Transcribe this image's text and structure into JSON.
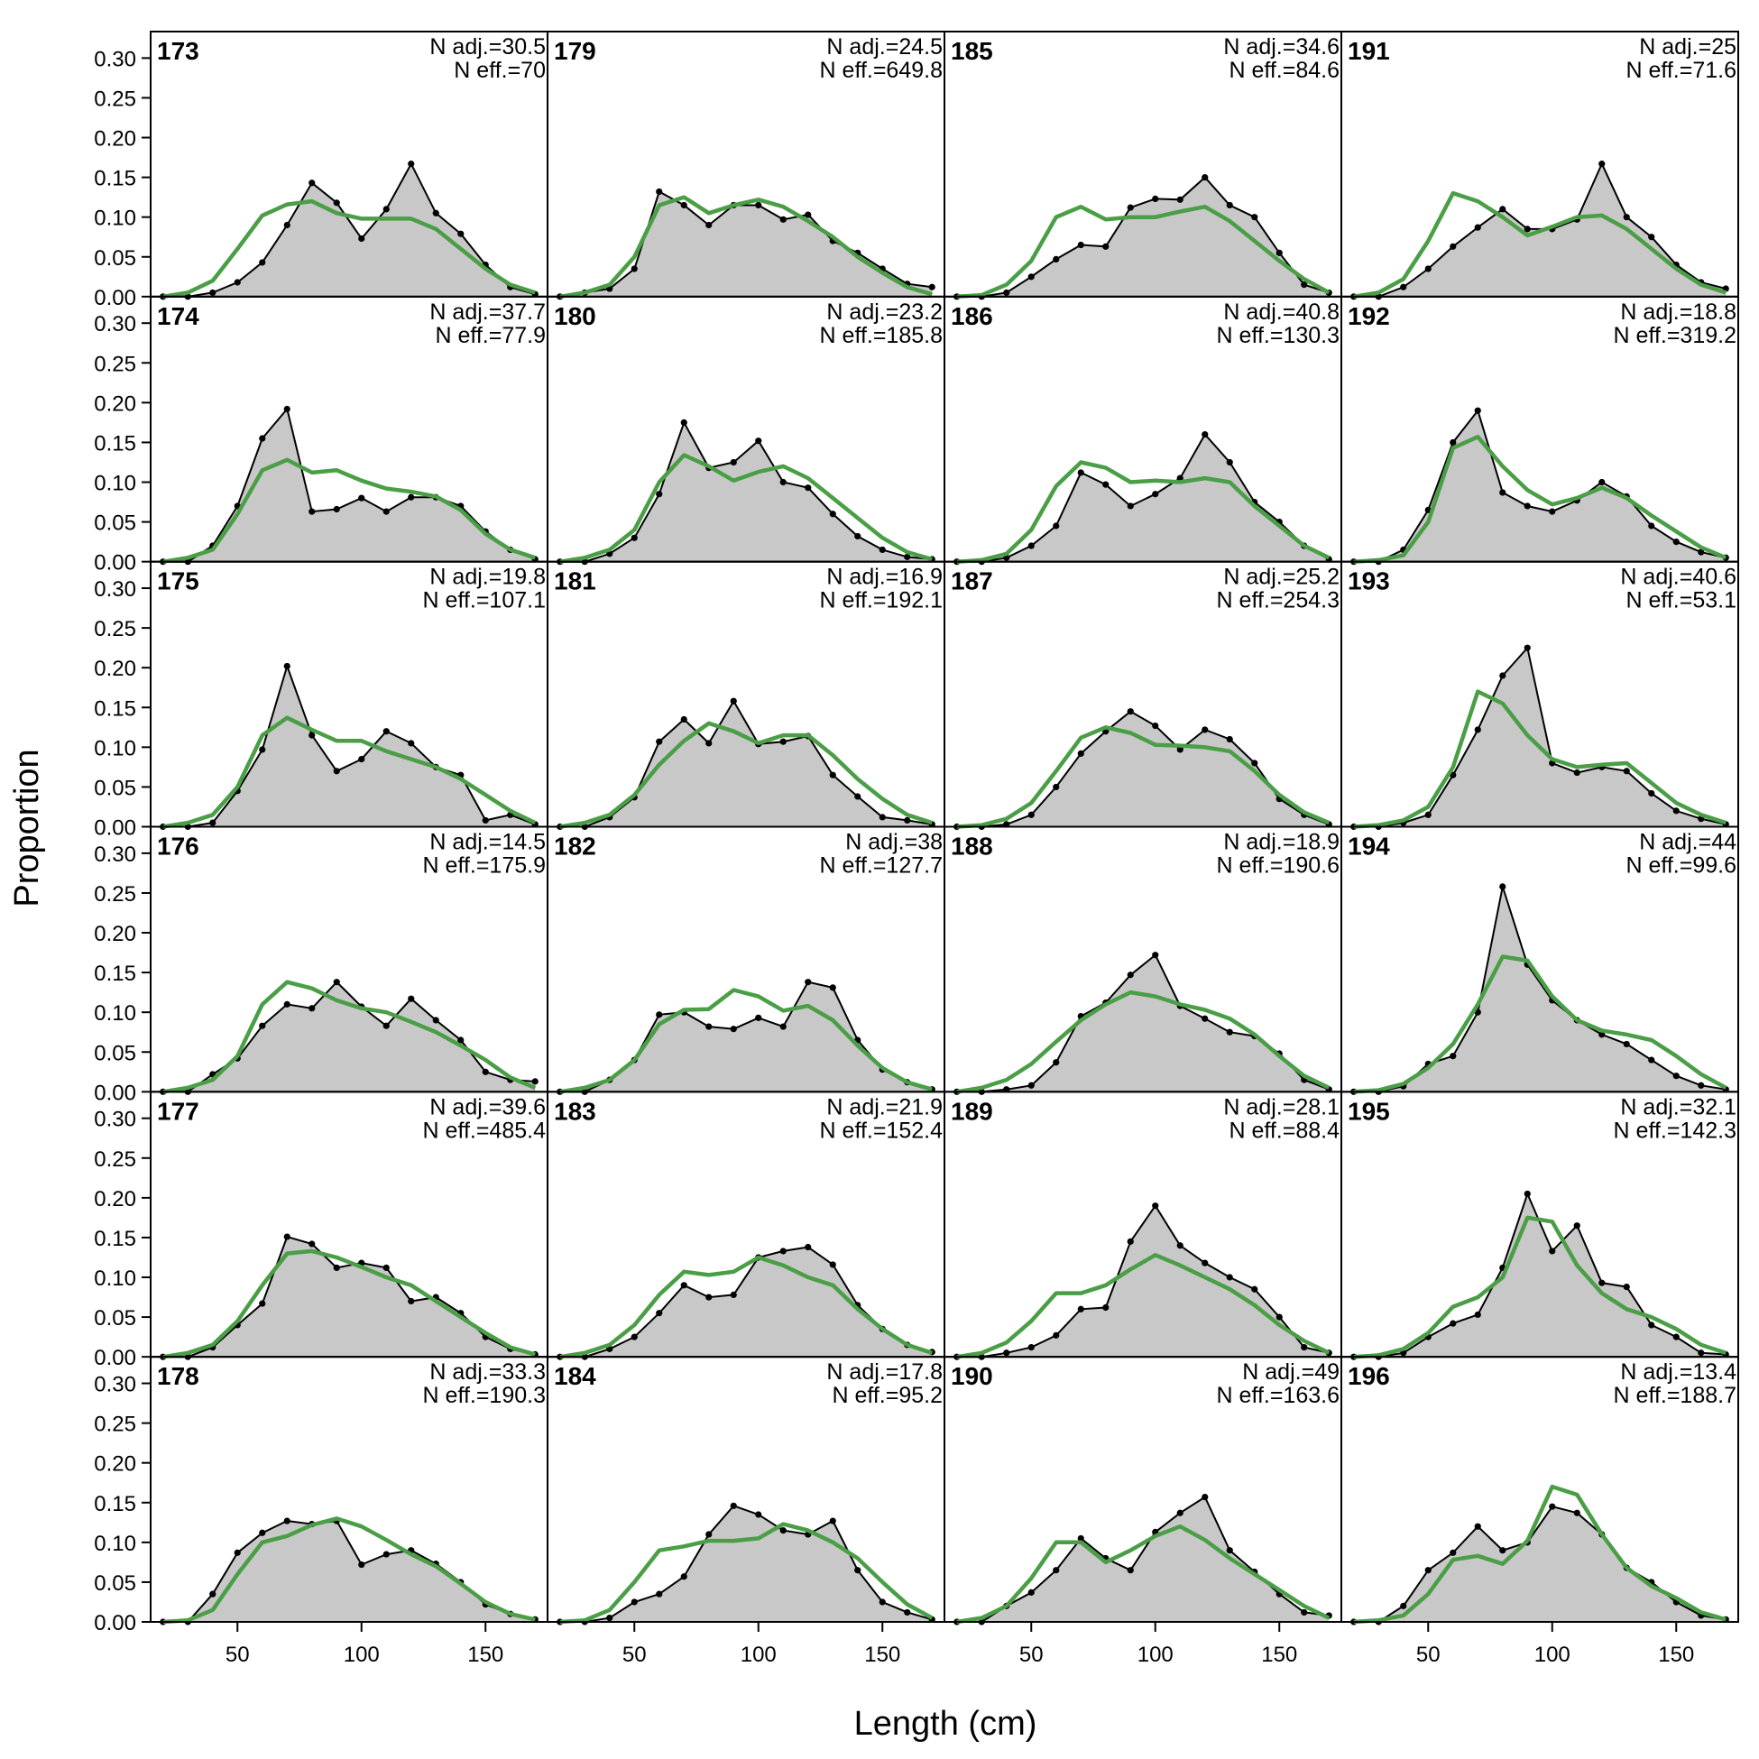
{
  "chart_data": {
    "type": "area",
    "xlabel": "Length (cm)",
    "ylabel": "Proportion",
    "xlim": [
      15,
      175
    ],
    "ylim": [
      0,
      0.33
    ],
    "x_ticks": [
      "50",
      "100",
      "150"
    ],
    "x_tick_values": [
      50,
      100,
      150
    ],
    "y_ticks": [
      "0.00",
      "0.05",
      "0.10",
      "0.15",
      "0.20",
      "0.25",
      "0.30"
    ],
    "y_tick_values": [
      0,
      0.05,
      0.1,
      0.15,
      0.2,
      0.25,
      0.3
    ],
    "x": [
      20,
      30,
      40,
      50,
      60,
      70,
      80,
      90,
      100,
      110,
      120,
      130,
      140,
      150,
      160,
      170
    ],
    "layout": {
      "columns": 4,
      "rows": 6,
      "order": "column-major"
    },
    "colors": {
      "observed_fill": "#c8c8c8",
      "observed_line": "#000000",
      "expected_line": "#4a9e46",
      "zero_line": "#b0b0b0"
    },
    "n_adj_prefix": "N adj.=",
    "n_eff_prefix": "N eff.=",
    "panels": [
      {
        "id": "173",
        "n_adj": "30.5",
        "n_eff": "70",
        "observed": [
          0,
          0,
          0.005,
          0.018,
          0.043,
          0.09,
          0.143,
          0.118,
          0.073,
          0.11,
          0.167,
          0.105,
          0.079,
          0.04,
          0.012,
          0.003
        ],
        "expected": [
          0,
          0.005,
          0.02,
          0.06,
          0.102,
          0.116,
          0.12,
          0.105,
          0.098,
          0.098,
          0.098,
          0.085,
          0.06,
          0.035,
          0.015,
          0.005
        ]
      },
      {
        "id": "174",
        "n_adj": "37.7",
        "n_eff": "77.9",
        "observed": [
          0,
          0,
          0.02,
          0.07,
          0.155,
          0.192,
          0.063,
          0.066,
          0.08,
          0.063,
          0.081,
          0.081,
          0.07,
          0.038,
          0.015,
          0.003
        ],
        "expected": [
          0,
          0.005,
          0.015,
          0.06,
          0.115,
          0.128,
          0.112,
          0.115,
          0.102,
          0.092,
          0.088,
          0.082,
          0.065,
          0.035,
          0.015,
          0.005
        ]
      },
      {
        "id": "175",
        "n_adj": "19.8",
        "n_eff": "107.1",
        "observed": [
          0,
          0,
          0.005,
          0.045,
          0.097,
          0.202,
          0.115,
          0.07,
          0.085,
          0.12,
          0.105,
          0.075,
          0.065,
          0.008,
          0.015,
          0.003
        ],
        "expected": [
          0,
          0.005,
          0.015,
          0.05,
          0.115,
          0.137,
          0.122,
          0.108,
          0.108,
          0.095,
          0.085,
          0.075,
          0.06,
          0.04,
          0.02,
          0.005
        ]
      },
      {
        "id": "176",
        "n_adj": "14.5",
        "n_eff": "175.9",
        "observed": [
          0,
          0,
          0.022,
          0.042,
          0.083,
          0.11,
          0.105,
          0.138,
          0.107,
          0.083,
          0.117,
          0.09,
          0.065,
          0.025,
          0.015,
          0.013
        ],
        "expected": [
          0,
          0.005,
          0.015,
          0.045,
          0.11,
          0.138,
          0.13,
          0.115,
          0.105,
          0.1,
          0.088,
          0.075,
          0.058,
          0.04,
          0.018,
          0.005
        ]
      },
      {
        "id": "177",
        "n_adj": "39.6",
        "n_eff": "485.4",
        "observed": [
          0,
          0,
          0.012,
          0.04,
          0.067,
          0.151,
          0.142,
          0.112,
          0.118,
          0.112,
          0.07,
          0.075,
          0.055,
          0.025,
          0.01,
          0.003
        ],
        "expected": [
          0,
          0.005,
          0.015,
          0.045,
          0.09,
          0.13,
          0.133,
          0.125,
          0.113,
          0.1,
          0.09,
          0.07,
          0.05,
          0.03,
          0.012,
          0.003
        ]
      },
      {
        "id": "178",
        "n_adj": "33.3",
        "n_eff": "190.3",
        "observed": [
          0,
          0,
          0.035,
          0.087,
          0.112,
          0.127,
          0.123,
          0.127,
          0.072,
          0.085,
          0.09,
          0.073,
          0.05,
          0.022,
          0.01,
          0.003
        ],
        "expected": [
          0,
          0.002,
          0.015,
          0.06,
          0.1,
          0.108,
          0.122,
          0.13,
          0.12,
          0.103,
          0.085,
          0.07,
          0.048,
          0.025,
          0.01,
          0.003
        ]
      },
      {
        "id": "179",
        "n_adj": "24.5",
        "n_eff": "649.8",
        "observed": [
          0,
          0.005,
          0.01,
          0.035,
          0.132,
          0.115,
          0.09,
          0.115,
          0.115,
          0.097,
          0.103,
          0.07,
          0.055,
          0.035,
          0.016,
          0.012
        ],
        "expected": [
          0,
          0.005,
          0.015,
          0.05,
          0.115,
          0.125,
          0.105,
          0.115,
          0.122,
          0.113,
          0.095,
          0.075,
          0.05,
          0.03,
          0.012,
          0.003
        ]
      },
      {
        "id": "180",
        "n_adj": "23.2",
        "n_eff": "185.8",
        "observed": [
          0,
          0,
          0.01,
          0.03,
          0.085,
          0.175,
          0.118,
          0.125,
          0.152,
          0.1,
          0.093,
          0.06,
          0.032,
          0.015,
          0.006,
          0.003
        ],
        "expected": [
          0,
          0.005,
          0.015,
          0.04,
          0.1,
          0.134,
          0.12,
          0.102,
          0.113,
          0.12,
          0.105,
          0.08,
          0.055,
          0.03,
          0.012,
          0.003
        ]
      },
      {
        "id": "181",
        "n_adj": "16.9",
        "n_eff": "192.1",
        "observed": [
          0,
          0,
          0.012,
          0.037,
          0.107,
          0.135,
          0.105,
          0.158,
          0.104,
          0.107,
          0.114,
          0.065,
          0.038,
          0.012,
          0.008,
          0.003
        ],
        "expected": [
          0,
          0.005,
          0.015,
          0.04,
          0.078,
          0.108,
          0.13,
          0.12,
          0.105,
          0.115,
          0.115,
          0.09,
          0.06,
          0.035,
          0.015,
          0.005
        ]
      },
      {
        "id": "182",
        "n_adj": "38",
        "n_eff": "127.7",
        "observed": [
          0,
          0,
          0.015,
          0.04,
          0.097,
          0.1,
          0.082,
          0.079,
          0.093,
          0.082,
          0.138,
          0.131,
          0.065,
          0.028,
          0.012,
          0.003
        ],
        "expected": [
          0,
          0.005,
          0.015,
          0.04,
          0.085,
          0.103,
          0.104,
          0.128,
          0.12,
          0.102,
          0.108,
          0.09,
          0.058,
          0.03,
          0.012,
          0.003
        ]
      },
      {
        "id": "183",
        "n_adj": "21.9",
        "n_eff": "152.4",
        "observed": [
          0,
          0,
          0.01,
          0.025,
          0.055,
          0.09,
          0.075,
          0.078,
          0.125,
          0.133,
          0.138,
          0.116,
          0.065,
          0.035,
          0.015,
          0.006
        ],
        "expected": [
          0,
          0.005,
          0.015,
          0.04,
          0.078,
          0.107,
          0.103,
          0.107,
          0.125,
          0.115,
          0.1,
          0.09,
          0.06,
          0.035,
          0.015,
          0.005
        ]
      },
      {
        "id": "184",
        "n_adj": "17.8",
        "n_eff": "95.2",
        "observed": [
          0,
          0,
          0.005,
          0.025,
          0.035,
          0.057,
          0.11,
          0.146,
          0.135,
          0.115,
          0.11,
          0.127,
          0.065,
          0.025,
          0.012,
          0.003
        ],
        "expected": [
          0,
          0.002,
          0.015,
          0.05,
          0.09,
          0.095,
          0.102,
          0.102,
          0.105,
          0.123,
          0.115,
          0.1,
          0.08,
          0.05,
          0.022,
          0.005
        ]
      },
      {
        "id": "185",
        "n_adj": "34.6",
        "n_eff": "84.6",
        "observed": [
          0,
          0,
          0.005,
          0.025,
          0.047,
          0.065,
          0.063,
          0.112,
          0.123,
          0.122,
          0.15,
          0.115,
          0.1,
          0.055,
          0.015,
          0.005
        ],
        "expected": [
          0,
          0.002,
          0.015,
          0.045,
          0.1,
          0.113,
          0.097,
          0.1,
          0.1,
          0.107,
          0.113,
          0.095,
          0.07,
          0.045,
          0.022,
          0.005
        ]
      },
      {
        "id": "186",
        "n_adj": "40.8",
        "n_eff": "130.3",
        "observed": [
          0,
          0,
          0.005,
          0.02,
          0.045,
          0.112,
          0.097,
          0.07,
          0.085,
          0.105,
          0.16,
          0.125,
          0.075,
          0.05,
          0.02,
          0.003
        ],
        "expected": [
          0,
          0.002,
          0.01,
          0.04,
          0.095,
          0.125,
          0.118,
          0.1,
          0.102,
          0.1,
          0.105,
          0.1,
          0.07,
          0.045,
          0.02,
          0.005
        ]
      },
      {
        "id": "187",
        "n_adj": "25.2",
        "n_eff": "254.3",
        "observed": [
          0,
          0,
          0.003,
          0.015,
          0.05,
          0.092,
          0.12,
          0.145,
          0.127,
          0.097,
          0.122,
          0.11,
          0.08,
          0.035,
          0.015,
          0.003
        ],
        "expected": [
          0,
          0.002,
          0.01,
          0.03,
          0.07,
          0.112,
          0.125,
          0.118,
          0.103,
          0.102,
          0.1,
          0.095,
          0.07,
          0.04,
          0.018,
          0.005
        ]
      },
      {
        "id": "188",
        "n_adj": "18.9",
        "n_eff": "190.6",
        "observed": [
          0,
          0,
          0.003,
          0.008,
          0.037,
          0.095,
          0.112,
          0.147,
          0.172,
          0.108,
          0.092,
          0.075,
          0.07,
          0.048,
          0.015,
          0.003
        ],
        "expected": [
          0,
          0.005,
          0.015,
          0.035,
          0.063,
          0.09,
          0.11,
          0.125,
          0.12,
          0.11,
          0.103,
          0.092,
          0.072,
          0.045,
          0.02,
          0.005
        ]
      },
      {
        "id": "189",
        "n_adj": "28.1",
        "n_eff": "88.4",
        "observed": [
          0,
          0,
          0.005,
          0.012,
          0.027,
          0.06,
          0.062,
          0.145,
          0.19,
          0.14,
          0.118,
          0.1,
          0.085,
          0.05,
          0.012,
          0.005
        ],
        "expected": [
          0,
          0.005,
          0.018,
          0.045,
          0.08,
          0.08,
          0.09,
          0.11,
          0.128,
          0.115,
          0.1,
          0.085,
          0.065,
          0.04,
          0.02,
          0.005
        ]
      },
      {
        "id": "190",
        "n_adj": "49",
        "n_eff": "163.6",
        "observed": [
          0,
          0,
          0.02,
          0.037,
          0.065,
          0.105,
          0.08,
          0.065,
          0.113,
          0.137,
          0.157,
          0.09,
          0.063,
          0.035,
          0.012,
          0.008
        ],
        "expected": [
          0,
          0.005,
          0.02,
          0.055,
          0.1,
          0.1,
          0.075,
          0.09,
          0.108,
          0.12,
          0.103,
          0.08,
          0.06,
          0.04,
          0.02,
          0.005
        ]
      },
      {
        "id": "191",
        "n_adj": "25",
        "n_eff": "71.6",
        "observed": [
          0,
          0,
          0.012,
          0.035,
          0.063,
          0.087,
          0.11,
          0.085,
          0.085,
          0.097,
          0.167,
          0.1,
          0.075,
          0.04,
          0.018,
          0.01
        ],
        "expected": [
          0,
          0.005,
          0.022,
          0.07,
          0.13,
          0.12,
          0.1,
          0.077,
          0.088,
          0.1,
          0.102,
          0.085,
          0.06,
          0.035,
          0.015,
          0.005
        ]
      },
      {
        "id": "192",
        "n_adj": "18.8",
        "n_eff": "319.2",
        "observed": [
          0,
          0,
          0.015,
          0.065,
          0.15,
          0.19,
          0.087,
          0.07,
          0.063,
          0.077,
          0.1,
          0.082,
          0.045,
          0.025,
          0.012,
          0.005
        ],
        "expected": [
          0,
          0.002,
          0.008,
          0.05,
          0.143,
          0.157,
          0.12,
          0.09,
          0.072,
          0.08,
          0.093,
          0.08,
          0.058,
          0.038,
          0.018,
          0.005
        ]
      },
      {
        "id": "193",
        "n_adj": "40.6",
        "n_eff": "53.1",
        "observed": [
          0,
          0,
          0.005,
          0.015,
          0.065,
          0.122,
          0.19,
          0.225,
          0.08,
          0.068,
          0.075,
          0.07,
          0.042,
          0.02,
          0.01,
          0.003
        ],
        "expected": [
          0,
          0.002,
          0.008,
          0.025,
          0.075,
          0.17,
          0.155,
          0.115,
          0.085,
          0.075,
          0.078,
          0.08,
          0.055,
          0.03,
          0.015,
          0.005
        ]
      },
      {
        "id": "194",
        "n_adj": "44",
        "n_eff": "99.6",
        "observed": [
          0,
          0,
          0.007,
          0.035,
          0.045,
          0.1,
          0.258,
          0.16,
          0.115,
          0.09,
          0.072,
          0.06,
          0.04,
          0.02,
          0.008,
          0.003
        ],
        "expected": [
          0,
          0.002,
          0.01,
          0.03,
          0.06,
          0.11,
          0.17,
          0.165,
          0.12,
          0.09,
          0.077,
          0.072,
          0.065,
          0.045,
          0.022,
          0.005
        ]
      },
      {
        "id": "195",
        "n_adj": "32.1",
        "n_eff": "142.3",
        "observed": [
          0,
          0,
          0.005,
          0.025,
          0.042,
          0.053,
          0.112,
          0.205,
          0.133,
          0.165,
          0.093,
          0.088,
          0.04,
          0.025,
          0.005,
          0.003
        ],
        "expected": [
          0,
          0.002,
          0.01,
          0.03,
          0.063,
          0.075,
          0.1,
          0.175,
          0.17,
          0.115,
          0.08,
          0.06,
          0.05,
          0.035,
          0.015,
          0.005
        ]
      },
      {
        "id": "196",
        "n_adj": "13.4",
        "n_eff": "188.7",
        "observed": [
          0,
          0,
          0.02,
          0.065,
          0.087,
          0.12,
          0.09,
          0.1,
          0.145,
          0.137,
          0.11,
          0.068,
          0.05,
          0.025,
          0.008,
          0.003
        ],
        "expected": [
          0,
          0.002,
          0.008,
          0.035,
          0.078,
          0.083,
          0.073,
          0.102,
          0.17,
          0.16,
          0.11,
          0.068,
          0.045,
          0.03,
          0.012,
          0.003
        ]
      }
    ]
  }
}
